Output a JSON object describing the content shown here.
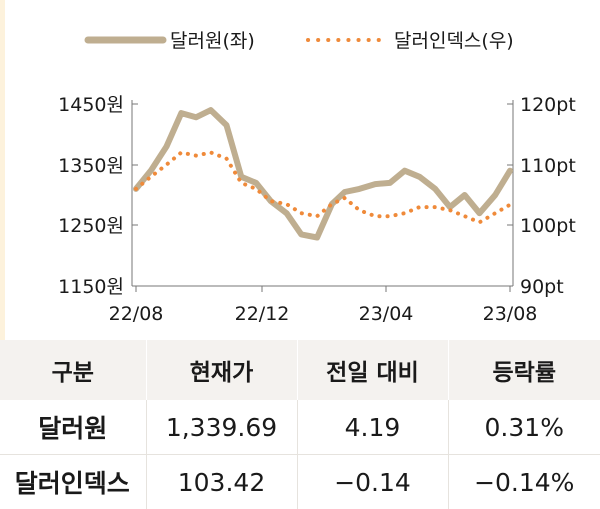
{
  "colors": {
    "krw_series": "#bfae90",
    "dxy_series": "#ef8a3a",
    "axis": "#777777",
    "header_bg": "#f4f2ef",
    "left_strip": "#fdf2dc"
  },
  "chart_data": {
    "type": "line",
    "legend": [
      {
        "label": "달러원(좌)",
        "style": "solid"
      },
      {
        "label": "달러인덱스(우)",
        "style": "dotted"
      }
    ],
    "left_axis": {
      "ticks": [
        "1450원",
        "1350원",
        "1250원",
        "1150원"
      ],
      "range": [
        1150,
        1450
      ]
    },
    "right_axis": {
      "ticks": [
        "120pt",
        "110pt",
        "100pt",
        "90pt"
      ],
      "range": [
        90,
        120
      ]
    },
    "x_ticks": [
      "22/08",
      "22/12",
      "23/04",
      "23/08"
    ],
    "x_range": [
      "2022-08",
      "2023-08"
    ],
    "series": [
      {
        "name": "달러원(좌)",
        "axis": "left",
        "dates": [
          "2022-08-01",
          "2022-08-16",
          "2022-09-01",
          "2022-09-16",
          "2022-10-01",
          "2022-10-16",
          "2022-11-01",
          "2022-11-16",
          "2022-12-01",
          "2022-12-16",
          "2023-01-01",
          "2023-01-16",
          "2023-02-01",
          "2023-02-16",
          "2023-03-01",
          "2023-03-16",
          "2023-04-01",
          "2023-04-16",
          "2023-05-01",
          "2023-05-16",
          "2023-06-01",
          "2023-06-16",
          "2023-07-01",
          "2023-07-16",
          "2023-08-01",
          "2023-08-16"
        ],
        "values": [
          1310,
          1340,
          1380,
          1435,
          1428,
          1440,
          1415,
          1330,
          1320,
          1290,
          1270,
          1235,
          1230,
          1285,
          1305,
          1310,
          1318,
          1320,
          1340,
          1330,
          1310,
          1280,
          1300,
          1270,
          1300,
          1340
        ]
      },
      {
        "name": "달러인덱스(우)",
        "axis": "right",
        "dates": [
          "2022-08-01",
          "2022-08-16",
          "2022-09-01",
          "2022-09-16",
          "2022-10-01",
          "2022-10-16",
          "2022-11-01",
          "2022-11-16",
          "2022-12-01",
          "2022-12-16",
          "2023-01-01",
          "2023-01-16",
          "2023-02-01",
          "2023-02-16",
          "2023-03-01",
          "2023-03-16",
          "2023-04-01",
          "2023-04-16",
          "2023-05-01",
          "2023-05-16",
          "2023-06-01",
          "2023-06-16",
          "2023-07-01",
          "2023-07-16",
          "2023-08-01",
          "2023-08-16"
        ],
        "values": [
          106.0,
          108.0,
          110.0,
          112.0,
          111.5,
          112.0,
          111.0,
          107.0,
          106.0,
          104.0,
          103.5,
          102.0,
          101.5,
          103.5,
          104.5,
          102.5,
          101.5,
          101.5,
          102.0,
          103.0,
          103.0,
          102.5,
          101.5,
          100.5,
          102.0,
          103.4
        ]
      }
    ]
  },
  "table": {
    "headers": [
      "구분",
      "현재가",
      "전일 대비",
      "등락률"
    ],
    "rows": [
      {
        "name": "달러원",
        "price": "1,339.69",
        "change": "4.19",
        "rate": "0.31%"
      },
      {
        "name": "달러인덱스",
        "price": "103.42",
        "change": "−0.14",
        "rate": "−0.14%"
      }
    ]
  }
}
